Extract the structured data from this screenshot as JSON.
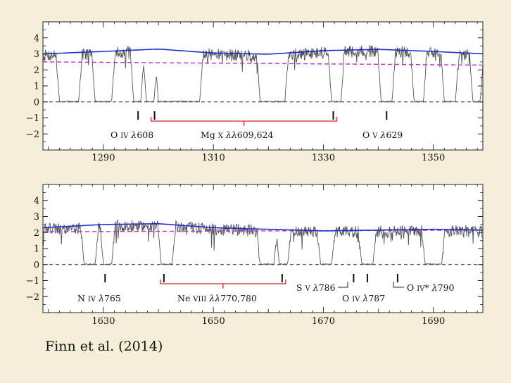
{
  "caption": "Finn et al. (2014)",
  "colors": {
    "background": "#f5efd9",
    "flux": "#555555",
    "continuum": "#1f2fd0",
    "guide": "#c030c0",
    "marker_red": "#d8232a",
    "zero": "#222222"
  },
  "chart_data": [
    {
      "type": "line",
      "title": "",
      "xlabel": "",
      "ylabel": "",
      "xlim": [
        1279,
        1359
      ],
      "ylim": [
        -3,
        5
      ],
      "x_ticks": [
        1290,
        1310,
        1330,
        1350
      ],
      "y_ticks": [
        4,
        3,
        2,
        1,
        0,
        -1,
        -2
      ],
      "grid": false,
      "continuum": {
        "x": [
          1279,
          1290,
          1300,
          1310,
          1320,
          1330,
          1340,
          1350,
          1359
        ],
        "y": [
          3.0,
          3.15,
          3.3,
          3.05,
          2.98,
          3.2,
          3.28,
          3.15,
          3.0
        ]
      },
      "guide": {
        "x": [
          1279,
          1359
        ],
        "y": [
          2.5,
          2.3
        ]
      },
      "zero_line": 0,
      "absorption_regions": [
        [
          1282,
          1285.5
        ],
        [
          1288.5,
          1291.5
        ],
        [
          1295.5,
          1296.8
        ],
        [
          1297.8,
          1299.2
        ],
        [
          1300,
          1307.5
        ],
        [
          1318.5,
          1323
        ],
        [
          1331.5,
          1333.2
        ],
        [
          1340.5,
          1342.5
        ],
        [
          1346.5,
          1348.2
        ],
        [
          1352,
          1354
        ],
        [
          1357.2,
          1358.5
        ]
      ],
      "annotations": [
        {
          "label": "O IV λ608",
          "marks": [
            1296.3
          ]
        },
        {
          "label": "Mg X λλ609,624",
          "marks": [
            1299.3,
            1331.8
          ],
          "bracket": true
        },
        {
          "label": "O V λ629",
          "marks": [
            1341.5
          ]
        }
      ]
    },
    {
      "type": "line",
      "title": "",
      "xlabel": "",
      "ylabel": "",
      "xlim": [
        1619,
        1699
      ],
      "ylim": [
        -3,
        5
      ],
      "x_ticks": [
        1630,
        1650,
        1670,
        1690
      ],
      "y_ticks": [
        4,
        3,
        2,
        1,
        0,
        -1,
        -2
      ],
      "grid": false,
      "continuum": {
        "x": [
          1619,
          1630,
          1640,
          1650,
          1660,
          1670,
          1680,
          1690,
          1699
        ],
        "y": [
          2.3,
          2.5,
          2.55,
          2.3,
          2.2,
          2.1,
          2.15,
          2.2,
          2.15
        ]
      },
      "guide": {
        "x": [
          1619,
          1699
        ],
        "y": [
          2.05,
          2.15
        ]
      },
      "zero_line": 0,
      "absorption_regions": [
        [
          1626.5,
          1628.5
        ],
        [
          1630,
          1631.5
        ],
        [
          1640.5,
          1642.5
        ],
        [
          1658.5,
          1661
        ],
        [
          1662,
          1663.5
        ],
        [
          1669.5,
          1671.5
        ],
        [
          1677,
          1679
        ],
        [
          1688.5,
          1691.5
        ]
      ],
      "annotations": [
        {
          "label": "N IV λ765",
          "marks": [
            1630.3
          ]
        },
        {
          "label": "Ne VIII λλ770,780",
          "marks": [
            1641,
            1662.5
          ],
          "bracket": true
        },
        {
          "label": "S V λ786",
          "marks": [
            1675.5
          ]
        },
        {
          "label": "O IV λ787",
          "marks": [
            1678
          ]
        },
        {
          "label": "O IV* λ790",
          "marks": [
            1683.5
          ]
        }
      ]
    }
  ]
}
